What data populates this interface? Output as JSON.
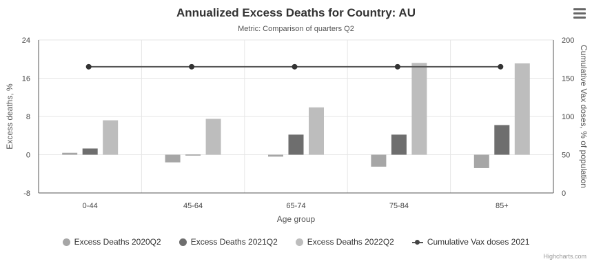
{
  "chart_data": {
    "type": "bar",
    "title": "Annualized Excess Deaths for Country: AU",
    "subtitle": "Metric: Comparison of quarters Q2",
    "xlabel": "Age group",
    "ylabel_left": "Excess deaths, %",
    "ylabel_right": "Cumulative Vax doses, % of population",
    "categories": [
      "0-44",
      "45-64",
      "65-74",
      "75-84",
      "85+"
    ],
    "ylim_left": [
      -8,
      24
    ],
    "yticks_left": [
      "-8",
      "0",
      "8",
      "16",
      "24"
    ],
    "ylim_right": [
      0,
      200
    ],
    "yticks_right": [
      "0",
      "50",
      "100",
      "150",
      "200"
    ],
    "grid": true,
    "legend_position": "bottom",
    "series": [
      {
        "name": "Excess Deaths 2020Q2",
        "type": "bar",
        "axis": "left",
        "color": "#a6a6a6",
        "values": [
          0.4,
          -1.6,
          -0.4,
          -2.5,
          -2.8
        ]
      },
      {
        "name": "Excess Deaths 2021Q2",
        "type": "bar",
        "axis": "left",
        "color": "#6e6e6e",
        "values": [
          1.3,
          -0.1,
          4.2,
          4.2,
          6.2
        ]
      },
      {
        "name": "Excess Deaths 2022Q2",
        "type": "bar",
        "axis": "left",
        "color": "#bdbdbd",
        "values": [
          7.2,
          7.5,
          9.9,
          19.2,
          19.1
        ]
      },
      {
        "name": "Cumulative Vax doses 2021",
        "type": "line",
        "axis": "right",
        "color": "#555555",
        "values": [
          165,
          165,
          165,
          165,
          165
        ]
      }
    ]
  },
  "credits": "Highcharts.com",
  "menu_icon": "hamburger-menu-icon"
}
